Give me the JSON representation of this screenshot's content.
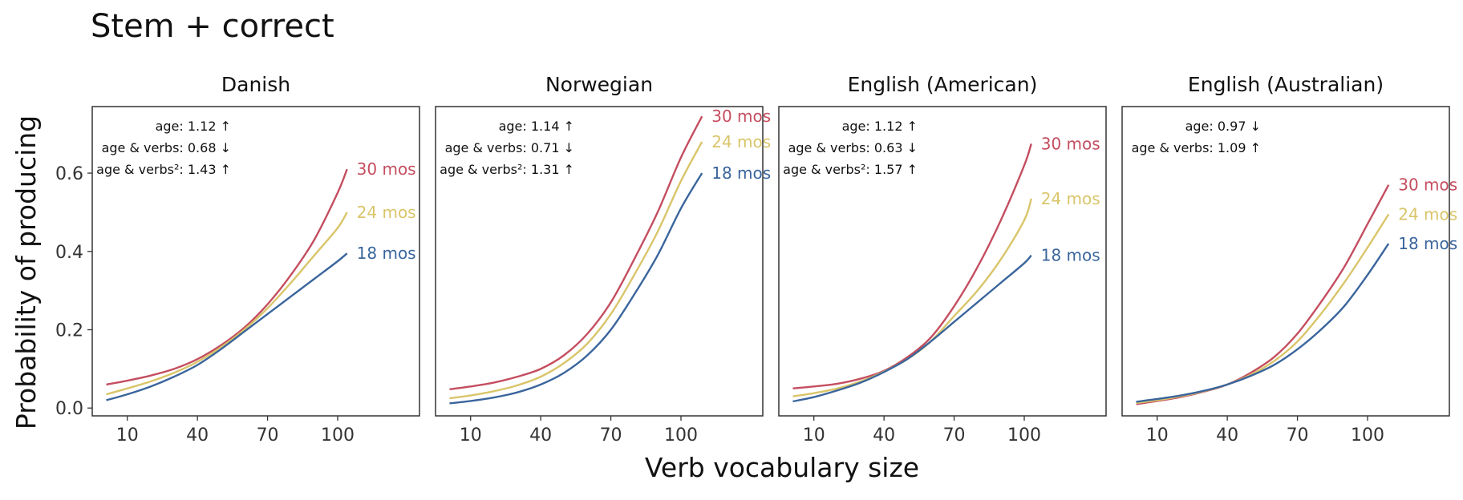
{
  "title": "Stem + correct",
  "xlabel": "Verb vocabulary size",
  "ylabel": "Probability of producing",
  "colors": {
    "30 mos": "#c44e60",
    "24 mos": "#d9c56a",
    "18 mos": "#3a659c"
  },
  "chart_data": {
    "type": "line",
    "title": "Stem + correct",
    "xlabel": "Verb vocabulary size",
    "ylabel": "Probability of producing",
    "xlim": [
      -5,
      135
    ],
    "ylim": [
      -0.02,
      0.77
    ],
    "xticks": [
      10,
      40,
      70,
      100
    ],
    "yticks": [
      0.0,
      0.2,
      0.4,
      0.6
    ],
    "ytick_labels": [
      "0.0",
      "0.2",
      "0.4",
      "0.6"
    ],
    "grid": false,
    "legend": "direct labels at line ends",
    "panels": [
      {
        "name": "Danish",
        "annotations": [
          "age: 1.12 ↑",
          "age & verbs: 0.68 ↓",
          "age & verbs²: 1.43 ↑"
        ],
        "series": [
          {
            "name": "30 mos",
            "x": [
              1,
              10,
              20,
              30,
              40,
              50,
              60,
              70,
              80,
              90,
              100,
              104
            ],
            "y": [
              0.06,
              0.07,
              0.083,
              0.1,
              0.125,
              0.16,
              0.205,
              0.265,
              0.34,
              0.43,
              0.55,
              0.61
            ]
          },
          {
            "name": "24 mos",
            "x": [
              1,
              10,
              20,
              30,
              40,
              50,
              60,
              70,
              80,
              90,
              100,
              104
            ],
            "y": [
              0.035,
              0.05,
              0.068,
              0.09,
              0.118,
              0.155,
              0.2,
              0.255,
              0.32,
              0.39,
              0.46,
              0.5
            ]
          },
          {
            "name": "18 mos",
            "x": [
              1,
              10,
              20,
              30,
              40,
              50,
              60,
              70,
              80,
              90,
              100,
              104
            ],
            "y": [
              0.02,
              0.035,
              0.055,
              0.08,
              0.11,
              0.15,
              0.195,
              0.24,
              0.285,
              0.33,
              0.375,
              0.395
            ]
          }
        ]
      },
      {
        "name": "Norwegian",
        "annotations": [
          "age: 1.14 ↑",
          "age & verbs: 0.71 ↓",
          "age & verbs²: 1.31 ↑"
        ],
        "series": [
          {
            "name": "30 mos",
            "x": [
              1,
              10,
              20,
              30,
              40,
              50,
              60,
              70,
              80,
              90,
              100,
              109
            ],
            "y": [
              0.048,
              0.055,
              0.065,
              0.08,
              0.1,
              0.135,
              0.19,
              0.27,
              0.38,
              0.5,
              0.64,
              0.745
            ]
          },
          {
            "name": "24 mos",
            "x": [
              1,
              10,
              20,
              30,
              40,
              50,
              60,
              70,
              80,
              90,
              100,
              109
            ],
            "y": [
              0.025,
              0.032,
              0.043,
              0.058,
              0.08,
              0.115,
              0.165,
              0.24,
              0.34,
              0.45,
              0.58,
              0.68
            ]
          },
          {
            "name": "18 mos",
            "x": [
              1,
              10,
              20,
              30,
              40,
              50,
              60,
              70,
              80,
              90,
              100,
              109
            ],
            "y": [
              0.012,
              0.018,
              0.027,
              0.04,
              0.06,
              0.09,
              0.135,
              0.2,
              0.29,
              0.39,
              0.51,
              0.6
            ]
          }
        ]
      },
      {
        "name": "English (American)",
        "annotations": [
          "age: 1.12 ↑",
          "age & verbs: 0.63 ↓",
          "age & verbs²: 1.57 ↑"
        ],
        "series": [
          {
            "name": "30 mos",
            "x": [
              1,
              10,
              20,
              30,
              40,
              50,
              60,
              70,
              80,
              90,
              100,
              103
            ],
            "y": [
              0.05,
              0.055,
              0.062,
              0.075,
              0.095,
              0.13,
              0.18,
              0.26,
              0.36,
              0.48,
              0.62,
              0.675
            ]
          },
          {
            "name": "24 mos",
            "x": [
              1,
              10,
              20,
              30,
              40,
              50,
              60,
              70,
              80,
              90,
              100,
              103
            ],
            "y": [
              0.03,
              0.038,
              0.05,
              0.068,
              0.093,
              0.125,
              0.17,
              0.235,
              0.3,
              0.38,
              0.48,
              0.535
            ]
          },
          {
            "name": "18 mos",
            "x": [
              1,
              10,
              20,
              30,
              40,
              50,
              60,
              70,
              80,
              90,
              100,
              103
            ],
            "y": [
              0.017,
              0.028,
              0.045,
              0.065,
              0.092,
              0.125,
              0.17,
              0.22,
              0.27,
              0.32,
              0.37,
              0.39
            ]
          }
        ]
      },
      {
        "name": "English (Australian)",
        "annotations": [
          "age: 0.97 ↓",
          "age & verbs: 1.09 ↑"
        ],
        "series": [
          {
            "name": "30 mos",
            "x": [
              1,
              10,
              20,
              30,
              40,
              50,
              60,
              70,
              80,
              90,
              100,
              109
            ],
            "y": [
              0.01,
              0.018,
              0.028,
              0.042,
              0.06,
              0.09,
              0.13,
              0.19,
              0.27,
              0.36,
              0.47,
              0.57
            ]
          },
          {
            "name": "24 mos",
            "x": [
              1,
              10,
              20,
              30,
              40,
              50,
              60,
              70,
              80,
              90,
              100,
              109
            ],
            "y": [
              0.013,
              0.02,
              0.03,
              0.043,
              0.06,
              0.085,
              0.12,
              0.17,
              0.24,
              0.32,
              0.41,
              0.495
            ]
          },
          {
            "name": "18 mos",
            "x": [
              1,
              10,
              20,
              30,
              40,
              50,
              60,
              70,
              80,
              90,
              100,
              109
            ],
            "y": [
              0.016,
              0.023,
              0.032,
              0.044,
              0.06,
              0.082,
              0.11,
              0.15,
              0.2,
              0.26,
              0.34,
              0.42
            ]
          }
        ]
      }
    ]
  }
}
